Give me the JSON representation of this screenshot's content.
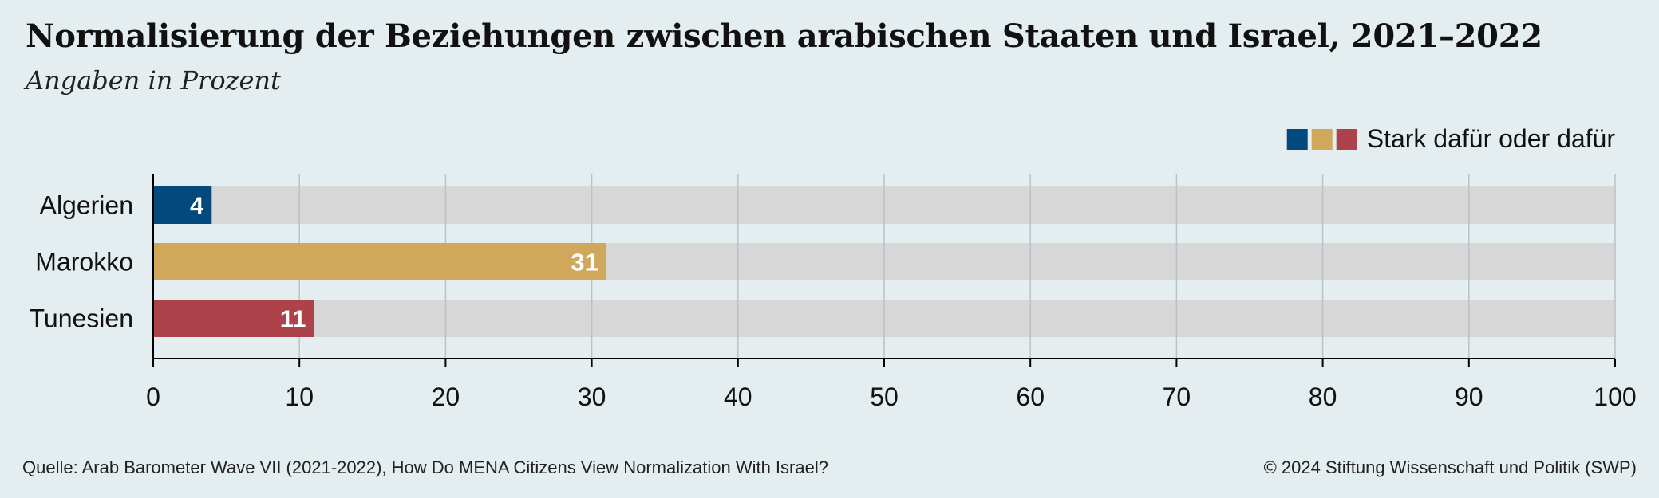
{
  "title": "Normalisierung der Beziehungen zwischen arabischen Staaten und Israel, 2021–2022",
  "subtitle": "Angaben in Prozent",
  "source": "Quelle: Arab Barometer Wave VII (2021-2022), How Do MENA Citizens View Normalization With Israel?",
  "copyright": "© 2024 Stiftung Wissenschaft und Politik (SWP)",
  "colors": {
    "algerien": "#024a7e",
    "marokko": "#cfa85c",
    "tunesien": "#ae424a",
    "track": "#d7d7d7",
    "grid": "#b9c2c6",
    "axis": "#000000"
  },
  "chart_data": {
    "type": "bar",
    "orientation": "horizontal",
    "categories": [
      "Algerien",
      "Marokko",
      "Tunesien"
    ],
    "values": [
      4,
      31,
      11
    ],
    "data_labels": [
      "4",
      "31",
      "11"
    ],
    "series": [
      {
        "name": "Stark dafür oder dafür",
        "values": [
          4,
          31,
          11
        ]
      }
    ],
    "legend": {
      "label": "Stark dafür oder dafür",
      "position": "top-right"
    },
    "xlim": [
      0,
      100
    ],
    "xticks": [
      "0",
      "10",
      "20",
      "30",
      "40",
      "50",
      "60",
      "70",
      "80",
      "90",
      "100"
    ],
    "grid": true
  }
}
